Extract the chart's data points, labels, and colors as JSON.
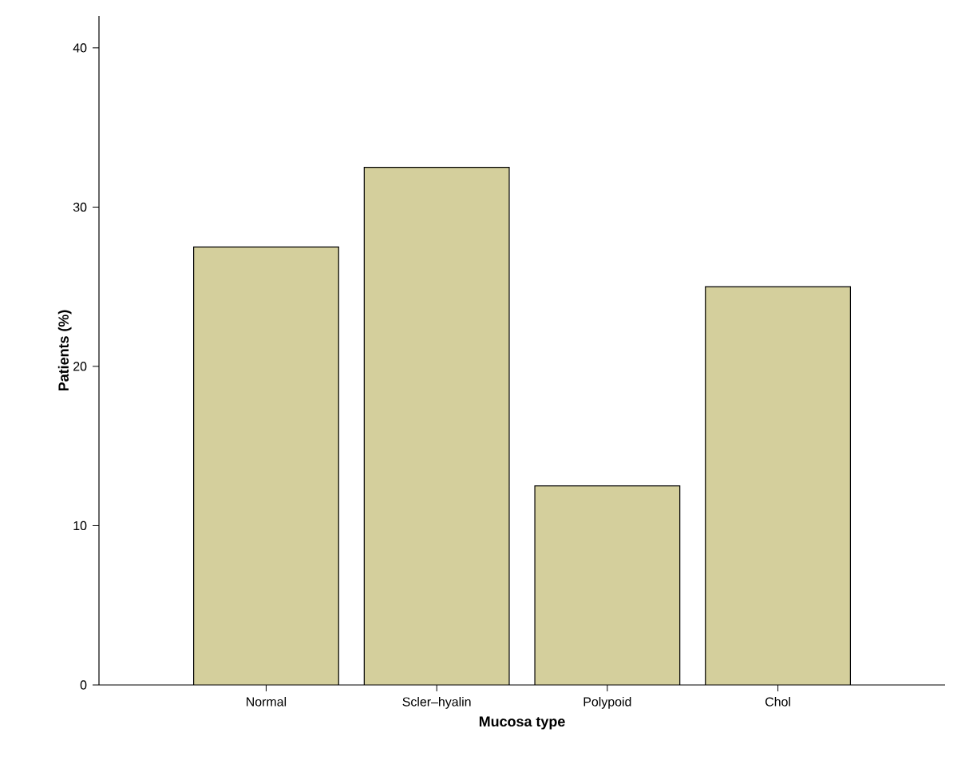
{
  "chart_data": {
    "type": "bar",
    "xlabel": "Mucosa type",
    "ylabel": "Patients (%)",
    "categories": [
      "Normal",
      "Scler–hyalin",
      "Polypoid",
      "Chol"
    ],
    "values": [
      27.5,
      32.5,
      12.5,
      25
    ],
    "color": "#d4cf9c",
    "ylim": [
      0,
      42
    ],
    "yticks": [
      0,
      10,
      20,
      30,
      40
    ]
  }
}
